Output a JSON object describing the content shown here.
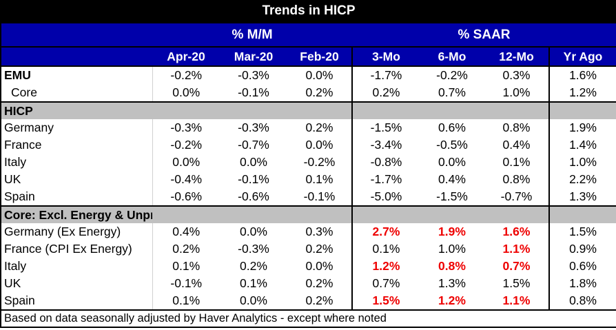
{
  "title": "Trends in HICP",
  "groups": {
    "mm": "% M/M",
    "saar": "% SAAR"
  },
  "columns": [
    "Apr-20",
    "Mar-20",
    "Feb-20",
    "3-Mo",
    "6-Mo",
    "12-Mo",
    "Yr Ago"
  ],
  "emu": {
    "label": "EMU",
    "values": [
      "-0.2%",
      "-0.3%",
      "0.0%",
      "-1.7%",
      "-0.2%",
      "0.3%",
      "1.6%"
    ],
    "core": {
      "label": "Core",
      "values": [
        "0.0%",
        "-0.1%",
        "0.2%",
        "0.2%",
        "0.7%",
        "1.0%",
        "1.2%"
      ]
    }
  },
  "hicp": {
    "label": "HICP",
    "rows": [
      {
        "label": "Germany",
        "values": [
          "-0.3%",
          "-0.3%",
          "0.2%",
          "-1.5%",
          "0.6%",
          "0.8%",
          "1.9%"
        ]
      },
      {
        "label": "France",
        "values": [
          "-0.2%",
          "-0.7%",
          "0.0%",
          "-3.4%",
          "-0.5%",
          "0.4%",
          "1.4%"
        ]
      },
      {
        "label": "Italy",
        "values": [
          "0.0%",
          "0.0%",
          "-0.2%",
          "-0.8%",
          "0.0%",
          "0.1%",
          "1.0%"
        ]
      },
      {
        "label": "UK",
        "values": [
          "-0.4%",
          "-0.1%",
          "0.1%",
          "-1.7%",
          "0.4%",
          "0.8%",
          "2.2%"
        ]
      },
      {
        "label": "Spain",
        "values": [
          "-0.6%",
          "-0.6%",
          "-0.1%",
          "-5.0%",
          "-1.5%",
          "-0.7%",
          "1.3%"
        ]
      }
    ]
  },
  "core_section": {
    "label": "Core: Excl. Energy & Unprocessed Food",
    "highlight_color": "#ee0000",
    "rows": [
      {
        "label": "Germany (Ex Energy)",
        "values": [
          "0.4%",
          "0.0%",
          "0.3%",
          "2.7%",
          "1.9%",
          "1.6%",
          "1.5%"
        ],
        "red": [
          3,
          4,
          5
        ]
      },
      {
        "label": "France (CPI Ex Energy)",
        "values": [
          "0.2%",
          "-0.3%",
          "0.2%",
          "0.1%",
          "1.0%",
          "1.1%",
          "0.9%"
        ],
        "red": [
          5
        ]
      },
      {
        "label": "Italy",
        "values": [
          "0.1%",
          "0.2%",
          "0.0%",
          "1.2%",
          "0.8%",
          "0.7%",
          "0.6%"
        ],
        "red": [
          3,
          4,
          5
        ]
      },
      {
        "label": "UK",
        "values": [
          "-0.1%",
          "0.1%",
          "0.2%",
          "0.7%",
          "1.3%",
          "1.5%",
          "1.8%"
        ],
        "red": []
      },
      {
        "label": "Spain",
        "values": [
          "0.1%",
          "0.0%",
          "0.2%",
          "1.5%",
          "1.2%",
          "1.1%",
          "0.8%"
        ],
        "red": [
          3,
          4,
          5
        ]
      }
    ]
  },
  "footnote": "Based on data seasonally adjusted by Haver Analytics - except where noted",
  "colors": {
    "header_bg": "#0000aa",
    "title_bg": "#000000",
    "section_bg": "#c0c0c0"
  }
}
